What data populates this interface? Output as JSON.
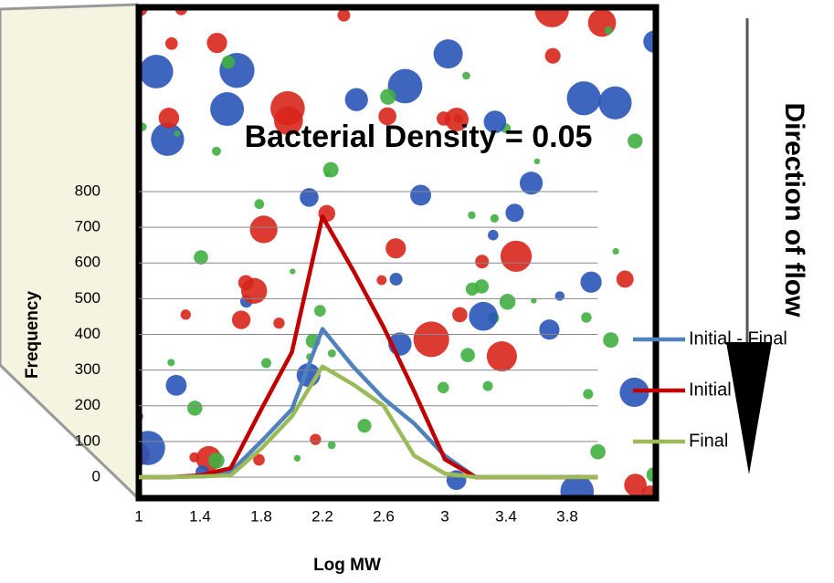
{
  "chart_data": {
    "type": "line",
    "title": "Bacterial Density = 0.05",
    "x_label": "Log MW",
    "y_label": "Frequency",
    "annotation": "Direction of flow",
    "x": [
      1,
      1.2,
      1.4,
      1.6,
      1.8,
      2.0,
      2.2,
      2.4,
      2.6,
      2.8,
      3.0,
      3.2,
      3.4,
      3.6,
      3.8,
      4.0
    ],
    "series": [
      {
        "name": "Initial - Final",
        "color": "#4f81bd",
        "values": [
          0,
          0,
          3,
          15,
          100,
          190,
          415,
          310,
          220,
          150,
          60,
          0,
          0,
          0,
          0,
          0
        ]
      },
      {
        "name": "Initial",
        "color": "#c00000",
        "values": [
          0,
          0,
          5,
          25,
          190,
          350,
          730,
          580,
          420,
          240,
          50,
          0,
          0,
          0,
          0,
          0
        ]
      },
      {
        "name": "Final",
        "color": "#9bbb59",
        "values": [
          0,
          0,
          2,
          5,
          80,
          170,
          310,
          260,
          200,
          60,
          10,
          0,
          0,
          0,
          0,
          0
        ]
      }
    ],
    "xlim": [
      1,
      4.0
    ],
    "xticks": [
      1,
      1.4,
      1.8,
      2.2,
      2.6,
      3,
      3.4,
      3.8
    ],
    "ylim": [
      0,
      800
    ],
    "yticks": [
      0,
      100,
      200,
      300,
      400,
      500,
      600,
      700,
      800
    ],
    "grid": true
  }
}
